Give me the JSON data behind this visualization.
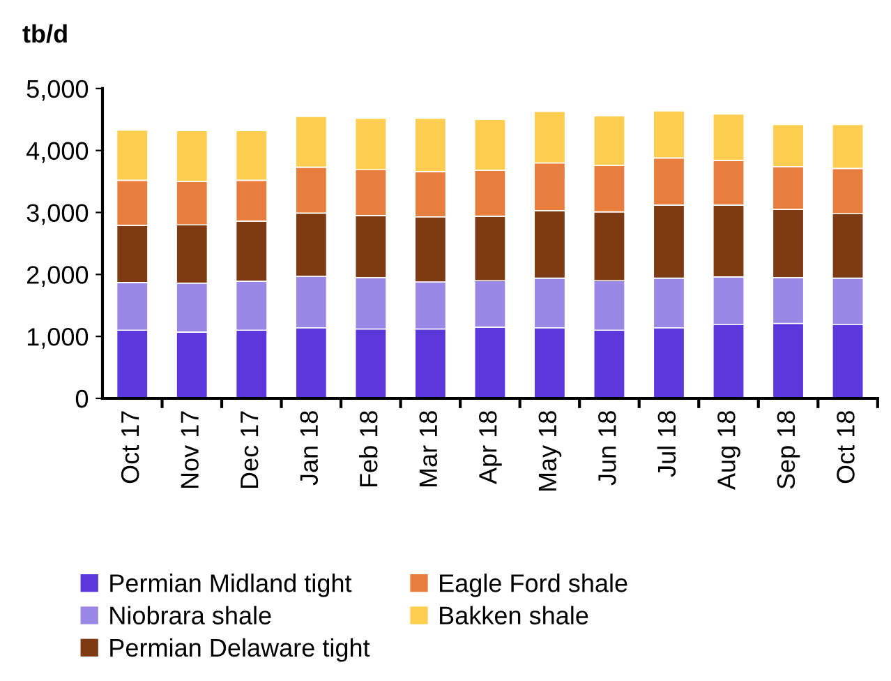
{
  "chart_data": {
    "type": "bar",
    "stacked": true,
    "ylabel": "tb/d",
    "categories": [
      "Oct 17",
      "Nov 17",
      "Dec 17",
      "Jan 18",
      "Feb 18",
      "Mar 18",
      "Apr 18",
      "May 18",
      "Jun 18",
      "Jul 18",
      "Aug 18",
      "Sep 18",
      "Oct 18"
    ],
    "series": [
      {
        "name": "Permian Midland tight",
        "color": "#5b37dc",
        "values": [
          1100,
          1070,
          1100,
          1140,
          1120,
          1120,
          1150,
          1140,
          1100,
          1140,
          1190,
          1210,
          1190
        ]
      },
      {
        "name": "Niobrara shale",
        "color": "#9b87e6",
        "values": [
          770,
          790,
          790,
          830,
          830,
          760,
          750,
          800,
          800,
          800,
          770,
          740,
          750
        ]
      },
      {
        "name": "Permian Delaware tight",
        "color": "#7e3a12",
        "values": [
          920,
          940,
          970,
          1020,
          1000,
          1050,
          1040,
          1090,
          1110,
          1180,
          1160,
          1100,
          1040
        ]
      },
      {
        "name": "Eagle Ford shale",
        "color": "#e77e3e",
        "values": [
          730,
          700,
          660,
          740,
          740,
          730,
          740,
          770,
          750,
          760,
          720,
          690,
          730
        ]
      },
      {
        "name": "Bakken shale",
        "color": "#ffcd50",
        "values": [
          810,
          820,
          800,
          820,
          830,
          860,
          820,
          830,
          800,
          760,
          750,
          680,
          710
        ]
      }
    ],
    "ylim": [
      0,
      5000
    ],
    "yticks": [
      {
        "value": 0,
        "label": "0"
      },
      {
        "value": 1000,
        "label": "1,000"
      },
      {
        "value": 2000,
        "label": "2,000"
      },
      {
        "value": 3000,
        "label": "3,000"
      },
      {
        "value": 4000,
        "label": "4,000"
      },
      {
        "value": 5000,
        "label": "5,000"
      }
    ],
    "grid": false,
    "legend": "bottom"
  }
}
